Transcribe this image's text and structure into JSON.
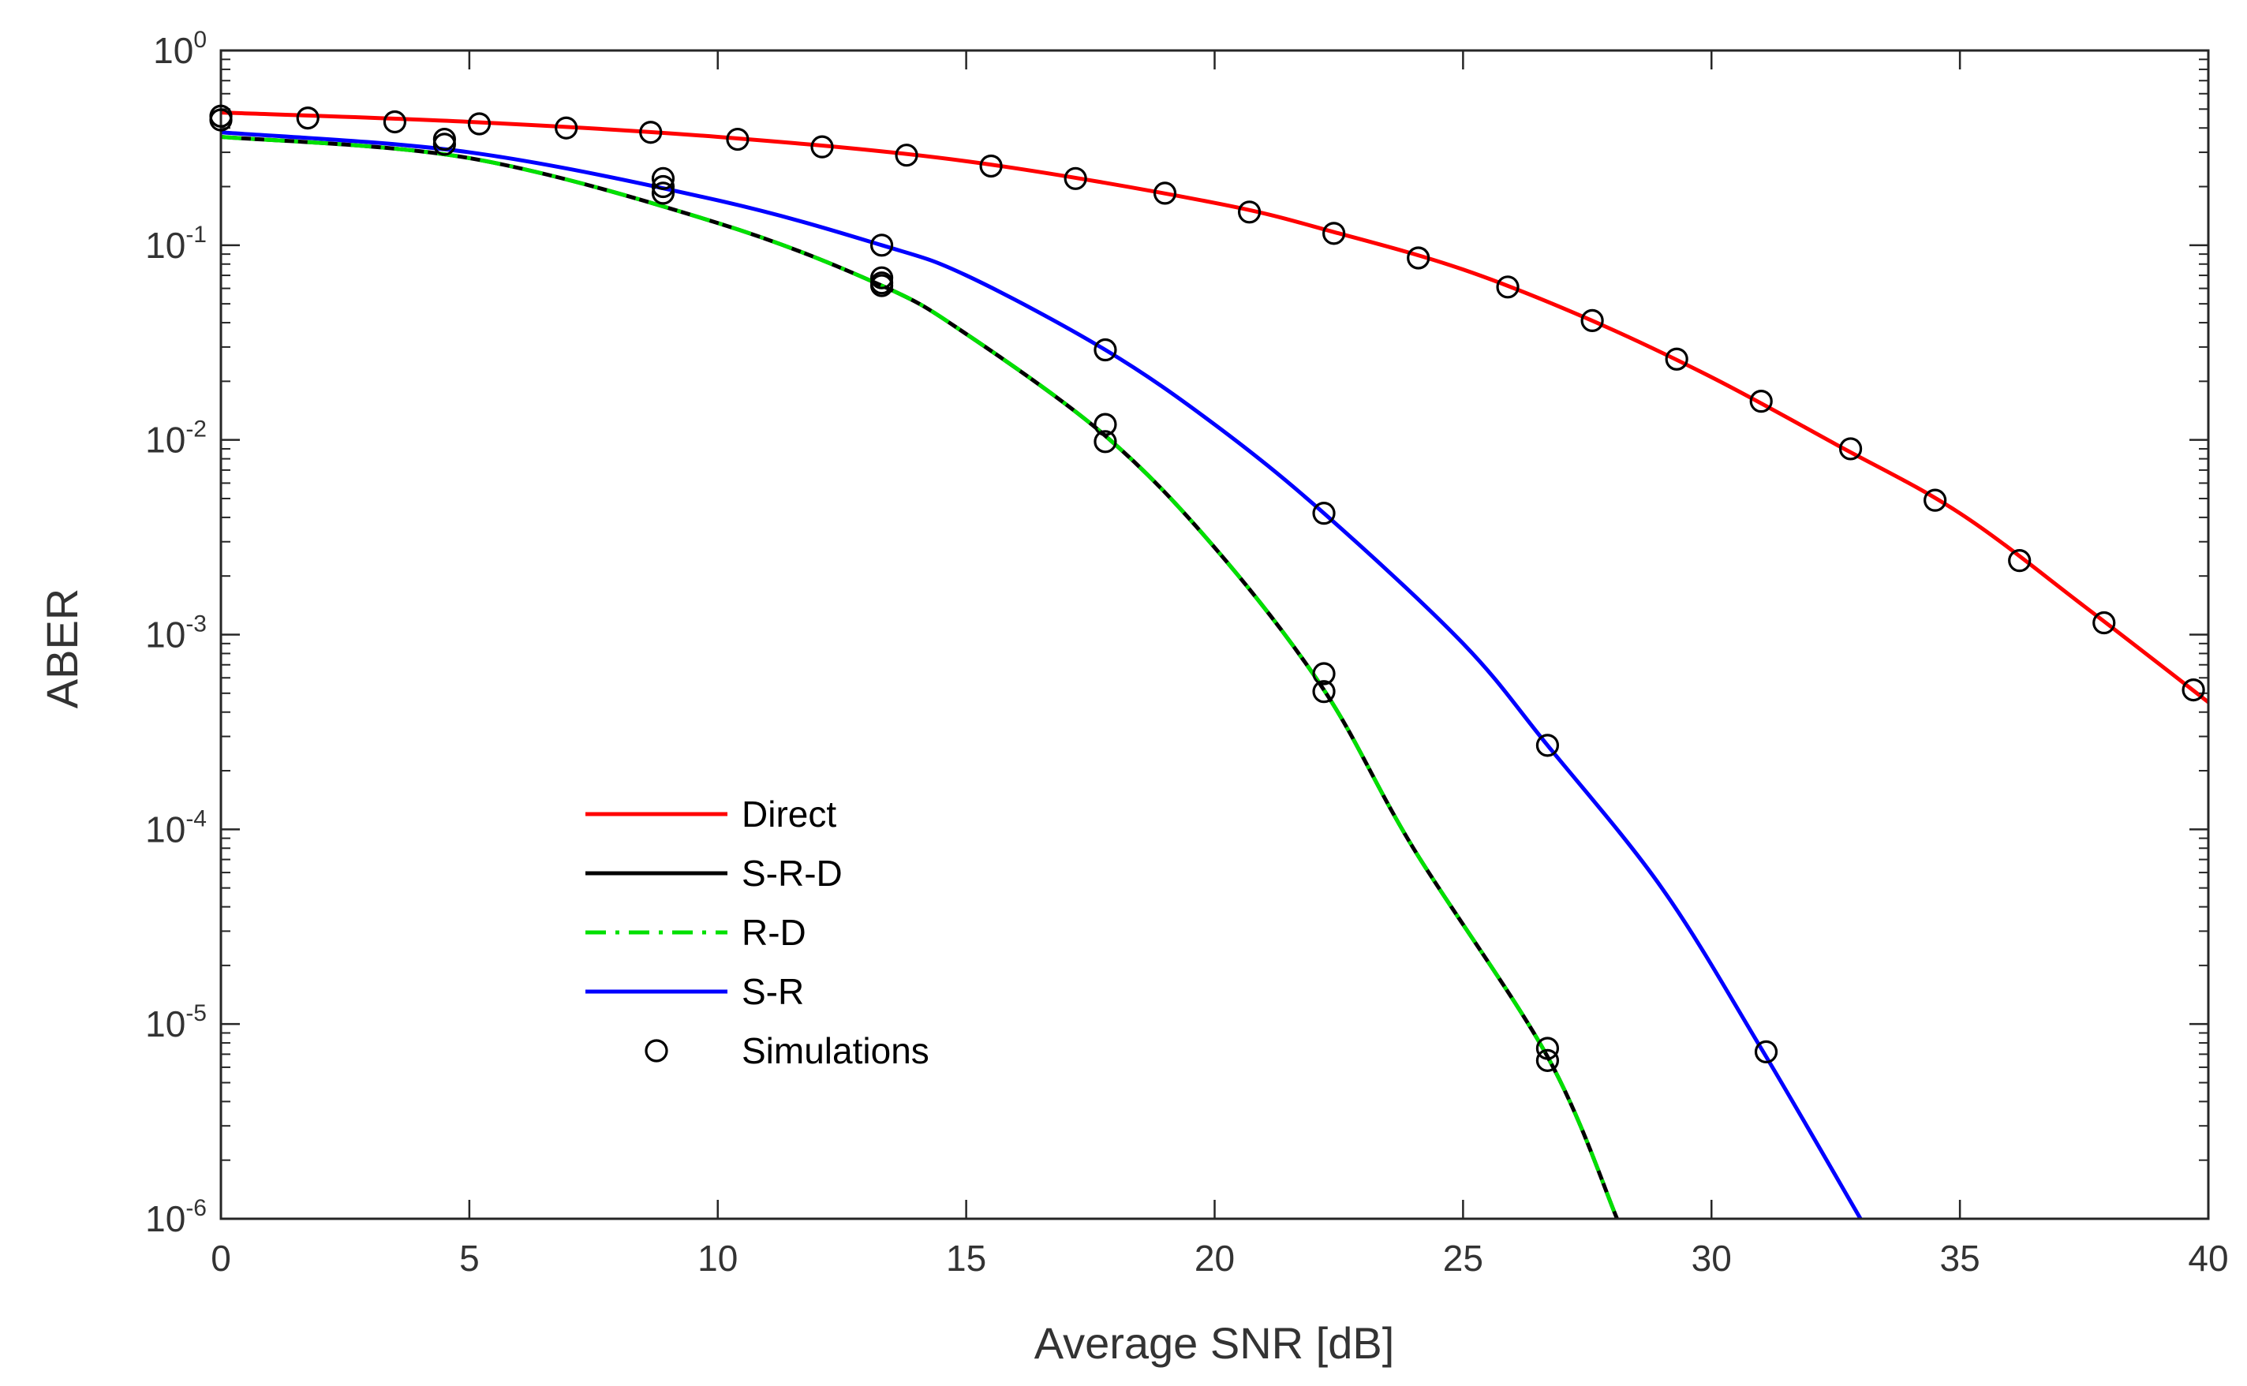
{
  "chart_data": {
    "type": "line",
    "xlabel": "Average SNR [dB]",
    "ylabel": "ABER",
    "xlim": [
      0,
      40
    ],
    "ylim": [
      1e-06,
      1
    ],
    "yscale": "log",
    "grid": false,
    "legend_position": "lower-left",
    "x_ticks": [
      {
        "value": 0,
        "label": "0"
      },
      {
        "value": 5,
        "label": "5"
      },
      {
        "value": 10,
        "label": "10"
      },
      {
        "value": 15,
        "label": "15"
      },
      {
        "value": 20,
        "label": "20"
      },
      {
        "value": 25,
        "label": "25"
      },
      {
        "value": 30,
        "label": "30"
      },
      {
        "value": 35,
        "label": "35"
      },
      {
        "value": 40,
        "label": "40"
      }
    ],
    "y_ticks": [
      {
        "value": 1,
        "base": "10",
        "exp": "0"
      },
      {
        "value": 0.1,
        "base": "10",
        "exp": "-1"
      },
      {
        "value": 0.01,
        "base": "10",
        "exp": "-2"
      },
      {
        "value": 0.001,
        "base": "10",
        "exp": "-3"
      },
      {
        "value": 0.0001,
        "base": "10",
        "exp": "-4"
      },
      {
        "value": 1e-05,
        "base": "10",
        "exp": "-5"
      },
      {
        "value": 1e-06,
        "base": "10",
        "exp": "-6"
      }
    ],
    "series": [
      {
        "name": "Direct",
        "color": "#ff0000",
        "dash": "solid",
        "x": [
          0,
          5,
          10,
          15,
          20,
          22.5,
          25,
          27.5,
          30,
          32.5,
          35,
          37.5,
          40
        ],
        "y": [
          0.48,
          0.43,
          0.36,
          0.27,
          0.165,
          0.115,
          0.075,
          0.042,
          0.021,
          0.0095,
          0.0042,
          0.0014,
          0.00045
        ]
      },
      {
        "name": "S-R-D",
        "color": "#000000",
        "dash": "solid",
        "x": [
          0,
          5,
          10,
          13.3,
          15,
          17.8,
          20,
          22.2,
          24,
          26.7,
          28.1
        ],
        "y": [
          0.36,
          0.28,
          0.13,
          0.062,
          0.035,
          0.0105,
          0.0028,
          0.00052,
          8e-05,
          6.8e-06,
          1e-06
        ]
      },
      {
        "name": "R-D",
        "color": "#00e000",
        "dash": "dashdot",
        "x": [
          0,
          5,
          10,
          13.3,
          15,
          17.8,
          20,
          22.2,
          24,
          26.7,
          28.1
        ],
        "y": [
          0.36,
          0.28,
          0.13,
          0.062,
          0.035,
          0.0105,
          0.0028,
          0.00052,
          8e-05,
          6.8e-06,
          1e-06
        ]
      },
      {
        "name": "S-R",
        "color": "#0000ff",
        "dash": "solid",
        "x": [
          0,
          5,
          10,
          13.3,
          15,
          17.8,
          20,
          22.2,
          25,
          26.7,
          29,
          31,
          33
        ],
        "y": [
          0.38,
          0.3,
          0.17,
          0.1,
          0.07,
          0.029,
          0.012,
          0.0042,
          0.0009,
          0.00027,
          5e-05,
          7.5e-06,
          1e-06
        ]
      },
      {
        "name": "Simulations",
        "color": "#000000",
        "marker": "circle",
        "x": [
          0,
          0,
          1.75,
          3.5,
          4.5,
          4.5,
          5.2,
          6.95,
          8.65,
          8.9,
          8.9,
          8.9,
          10.4,
          12.1,
          13.3,
          13.3,
          13.3,
          13.3,
          13.8,
          15.5,
          17.2,
          17.8,
          17.8,
          17.8,
          19,
          20.7,
          22.2,
          22.2,
          22.2,
          22.4,
          24.1,
          25.9,
          26.7,
          26.7,
          26.7,
          27.6,
          29.3,
          31,
          31.1,
          32.8,
          34.5,
          36.2,
          37.9,
          39.7
        ],
        "y": [
          0.46,
          0.44,
          0.45,
          0.43,
          0.35,
          0.33,
          0.42,
          0.4,
          0.38,
          0.22,
          0.2,
          0.185,
          0.35,
          0.32,
          0.1,
          0.068,
          0.064,
          0.062,
          0.29,
          0.255,
          0.22,
          0.029,
          0.012,
          0.0098,
          0.185,
          0.148,
          0.0042,
          0.00063,
          0.00051,
          0.115,
          0.086,
          0.061,
          0.00027,
          7.5e-06,
          6.5e-06,
          0.041,
          0.026,
          0.0158,
          7.2e-06,
          0.009,
          0.0049,
          0.0024,
          0.00115,
          0.00052
        ]
      }
    ]
  }
}
